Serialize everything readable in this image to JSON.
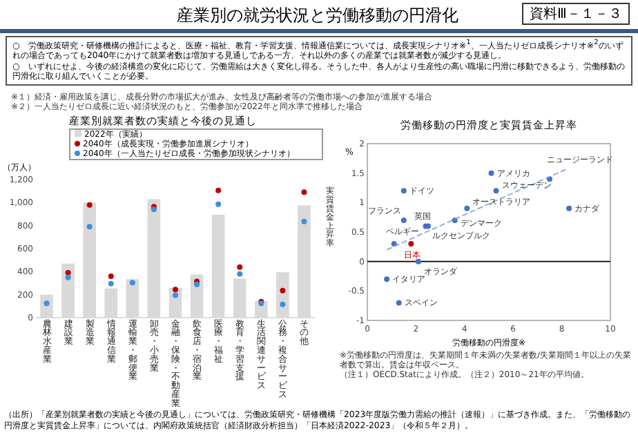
{
  "chart_data": [
    {
      "type": "other",
      "title": "産業別の就労状況と労働移動の円滑化",
      "annotations": [
        "資料Ⅲ－１－３",
        "○　労働政策研究・研修機構の推計によると、医療・福祉、教育・学習支援、情報通信業については、成長実現シナリオ※$^{1}$、一人当たりゼロ成長シナリオ※$^{2}$のいずれの場合であっても2040年にかけて就業者数は増加する見通しである一方、それ以外の多くの産業では就業者数が減少する見通し。",
        "○　いずれにせよ、今後の経済構造の変化に応じて、労働需給は大きく変化し得る。そうした中、各人がより生産性の高い職場に円滑に移動できるよう、労働移動の円滑化に取り組んでいくことが必要。",
        "※１）経済・雇用政策を講じ、成長分野の市場拡大が進み、女性及び高齢者等の労働市場への参加が進展する場合",
        "※２）一人当たりゼロ成長に近い経済状況のもと、労働参加が2022年と同水準で推移した場合",
        "（出所）「産業別就業者数の実績と今後の見通し」については、労働政策研究・研修機構「2023年度版労働力需給の推計（速報）」に基づき作成。また、「労働移動の円滑度と実質賃金上昇率」については、内閣府政策統括官（経済財政分析担当）「日本経済2022-2023」（令和５年２月）。"
      ]
    },
    {
      "type": "bar",
      "title": "産業別就業者数の実績と今後の見通し",
      "ylabel": "（万人）",
      "legend": "top right",
      "categories": [
        "農林水産業",
        "建設業",
        "製造業",
        "情報通信業",
        "運輸業・郵便業",
        "卸売・小売業",
        "金融・保険・不動産業",
        "飲食店・宿泊業",
        "医療・福祉",
        "教育・学習支援",
        "生活関連サービス",
        "公務・複合サービス",
        "その他"
      ],
      "ylim": [
        0,
        1200
      ],
      "yticks": [
        0,
        200,
        400,
        600,
        800,
        {
          "value": 1000,
          "label": "1,000"
        },
        {
          "value": 1200,
          "label": "1,200"
        }
      ],
      "series": [
        {
          "name": "2022年（実績）",
          "type": "bar",
          "color": "#d9d9d9",
          "values": [
            200,
            470,
            1000,
            255,
            335,
            1030,
            260,
            375,
            895,
            340,
            145,
            395,
            975
          ]
        },
        {
          "name": "2040年（成長実現・労働参加進展シナリオ）",
          "type": "scatter",
          "color": "#c00000",
          "values": [
            null,
            390,
            980,
            360,
            null,
            965,
            245,
            315,
            1105,
            440,
            140,
            235,
            1090
          ]
        },
        {
          "name": "2040年（一人当たりゼロ成長・労働参加現状シナリオ）",
          "type": "scatter",
          "color": "#3d8fe0",
          "values": [
            125,
            350,
            790,
            295,
            305,
            940,
            195,
            290,
            985,
            380,
            125,
            115,
            835
          ]
        }
      ]
    },
    {
      "type": "scatter",
      "title": "労働移動の円滑度と実質賃金上昇率",
      "xlabel": "労働移動の円滑度※",
      "ylabel": "実質賃金上昇率",
      "xlim": [
        0,
        10
      ],
      "xticks": [
        0,
        2,
        4,
        6,
        8,
        10
      ],
      "ylim": [
        -1,
        2
      ],
      "yticks": [
        -1,
        -0.5,
        0,
        0.5,
        1,
        1.5,
        2
      ],
      "ref_lines": [
        {
          "axis": "y",
          "value": 0,
          "color": "#000000"
        }
      ],
      "series": [
        {
          "type": "scatter",
          "x": [
            7.5,
            5.1,
            5.3,
            1.5,
            4.1,
            8.3,
            1.5,
            2.4,
            3.6,
            2.5,
            1.1,
            1.8,
            2.1,
            0.8,
            1.3
          ],
          "values": [
            1.4,
            1.5,
            1.2,
            1.2,
            0.9,
            0.9,
            0.7,
            0.6,
            0.7,
            0.6,
            0.3,
            0.3,
            0,
            -0.3,
            -0.7
          ],
          "colors": [
            "#4472c4",
            "#4472c4",
            "#4472c4",
            "#4472c4",
            "#4472c4",
            "#4472c4",
            "#4472c4",
            "#4472c4",
            "#4472c4",
            "#4472c4",
            "#4472c4",
            "#c00000",
            "#4472c4",
            "#4472c4",
            "#4472c4"
          ]
        },
        {
          "type": "line",
          "x": [
            0.8,
            8.2
          ],
          "values": [
            0.2,
            1.57
          ],
          "color": "#7fa7e0",
          "line_style": "dashed"
        }
      ],
      "annotations": [
        {
          "text": "ニュージーランド",
          "x": 7.5,
          "y": 1.4
        },
        {
          "text": "アメリカ",
          "x": 5.1,
          "y": 1.5
        },
        {
          "text": "スウェーデン",
          "x": 5.3,
          "y": 1.2
        },
        {
          "text": "ドイツ",
          "x": 1.5,
          "y": 1.2
        },
        {
          "text": "オーストラリア",
          "x": 4.1,
          "y": 0.9
        },
        {
          "text": "カナダ",
          "x": 8.3,
          "y": 0.9
        },
        {
          "text": "フランス",
          "x": 1.5,
          "y": 0.7
        },
        {
          "text": "英国",
          "x": 2.4,
          "y": 0.6
        },
        {
          "text": "デンマーク",
          "x": 3.6,
          "y": 0.7
        },
        {
          "text": "ルクセンブルク",
          "x": 2.5,
          "y": 0.6
        },
        {
          "text": "ベルギー",
          "x": 1.1,
          "y": 0.3
        },
        {
          "text": "日本",
          "x": 1.8,
          "y": 0.3
        },
        {
          "text": "オランダ",
          "x": 2.1,
          "y": 0
        },
        {
          "text": "イタリア",
          "x": 0.8,
          "y": -0.3
        },
        {
          "text": "スペイン",
          "x": 1.3,
          "y": -0.7
        },
        "%",
        "※労働移動の円滑度は、失業期間１年未満の失業者数/失業期間１年以上の失業者数で算出。賃金は年収ベース。",
        "（注１）OECD.Statにより作成。（注２）2010～21年の平均値。"
      ]
    }
  ]
}
